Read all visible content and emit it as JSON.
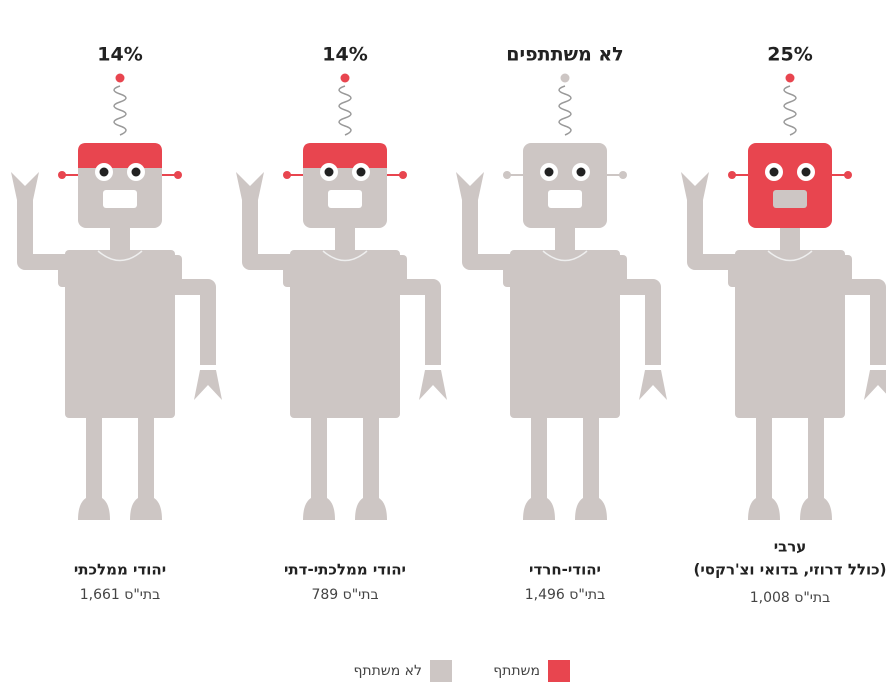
{
  "robots": [
    {
      "top": "14%",
      "name": [
        "יהודי ממלכתי"
      ],
      "schools": "1,661 בתי\"ס"
    },
    {
      "top": "14%",
      "name": [
        "יהודי ממלכתי-דתי"
      ],
      "schools": "789 בתי\"ס"
    },
    {
      "top": "לא משתתפים",
      "name": [
        "יהודי-חרדי"
      ],
      "schools": "1,496 בתי\"ס"
    },
    {
      "top": "25%",
      "name": [
        "ערבי",
        "(כולל דרוזי, בדואי וצ'רקסי)"
      ],
      "schools": "1,008 בתי\"ס"
    }
  ],
  "legend": {
    "participating": "משתתף",
    "not_participating": "לא משתתף"
  }
}
